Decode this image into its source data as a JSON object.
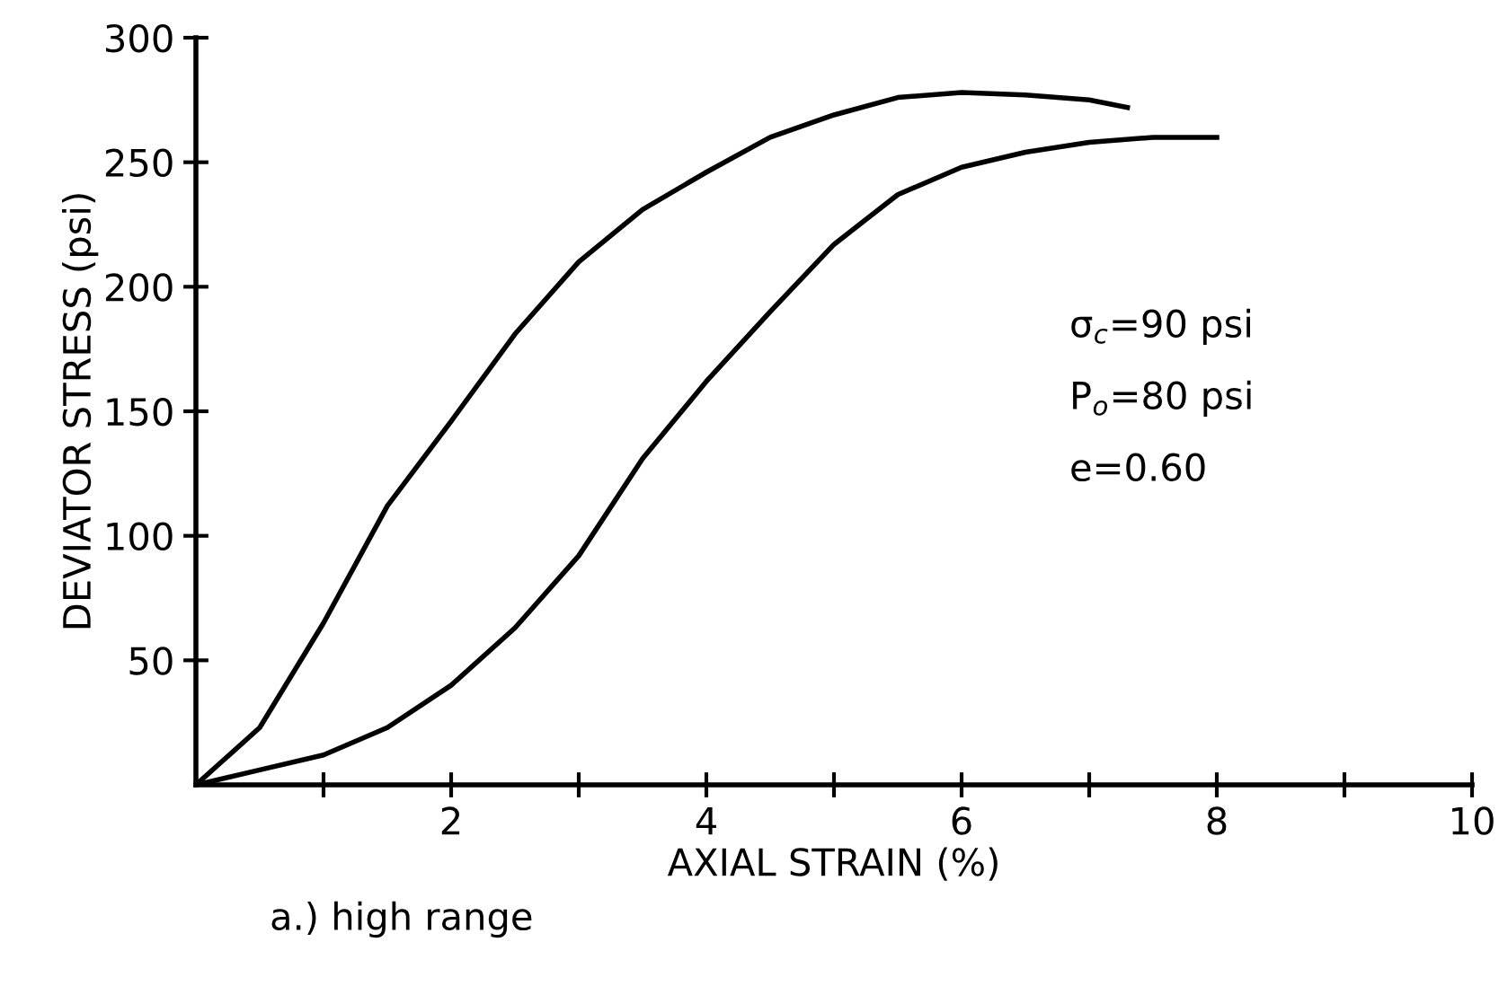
{
  "chart_data": {
    "type": "line",
    "xlabel": "AXIAL STRAIN (%)",
    "ylabel": "DEVIATOR STRESS (psi)",
    "xlim": [
      0,
      10
    ],
    "ylim": [
      0,
      300
    ],
    "xticks": [
      {
        "value": 1,
        "label": null
      },
      2,
      {
        "value": 3,
        "label": null
      },
      4,
      {
        "value": 5,
        "label": null
      },
      6,
      {
        "value": 7,
        "label": null
      },
      8,
      {
        "value": 9,
        "label": null
      },
      10
    ],
    "yticks": [
      50,
      100,
      150,
      200,
      250,
      300
    ],
    "grid": false,
    "marker": "none",
    "line_style": "solid",
    "series": [
      {
        "color": "#000000",
        "x": [
          0,
          0.5,
          1,
          1.5,
          2,
          2.5,
          3,
          3.5,
          4,
          4.5,
          5,
          5.5,
          6,
          6.5,
          7,
          7.3
        ],
        "values": [
          0,
          23,
          65,
          112,
          146,
          181,
          210,
          231,
          246,
          260,
          269,
          276,
          278,
          277,
          275,
          272
        ]
      },
      {
        "color": "#000000",
        "x": [
          0,
          0.5,
          1,
          1.5,
          2,
          2.5,
          3,
          3.5,
          4,
          4.5,
          5,
          5.5,
          6,
          6.5,
          7,
          7.5,
          8
        ],
        "values": [
          0,
          6,
          12,
          23,
          40,
          63,
          92,
          131,
          162,
          190,
          217,
          237,
          248,
          254,
          258,
          260,
          260
        ]
      }
    ],
    "annotations": [
      "σ$_{c}$=90 psi",
      "P$_{o}$=80 psi",
      "e=0.60",
      "a.) high range"
    ]
  }
}
